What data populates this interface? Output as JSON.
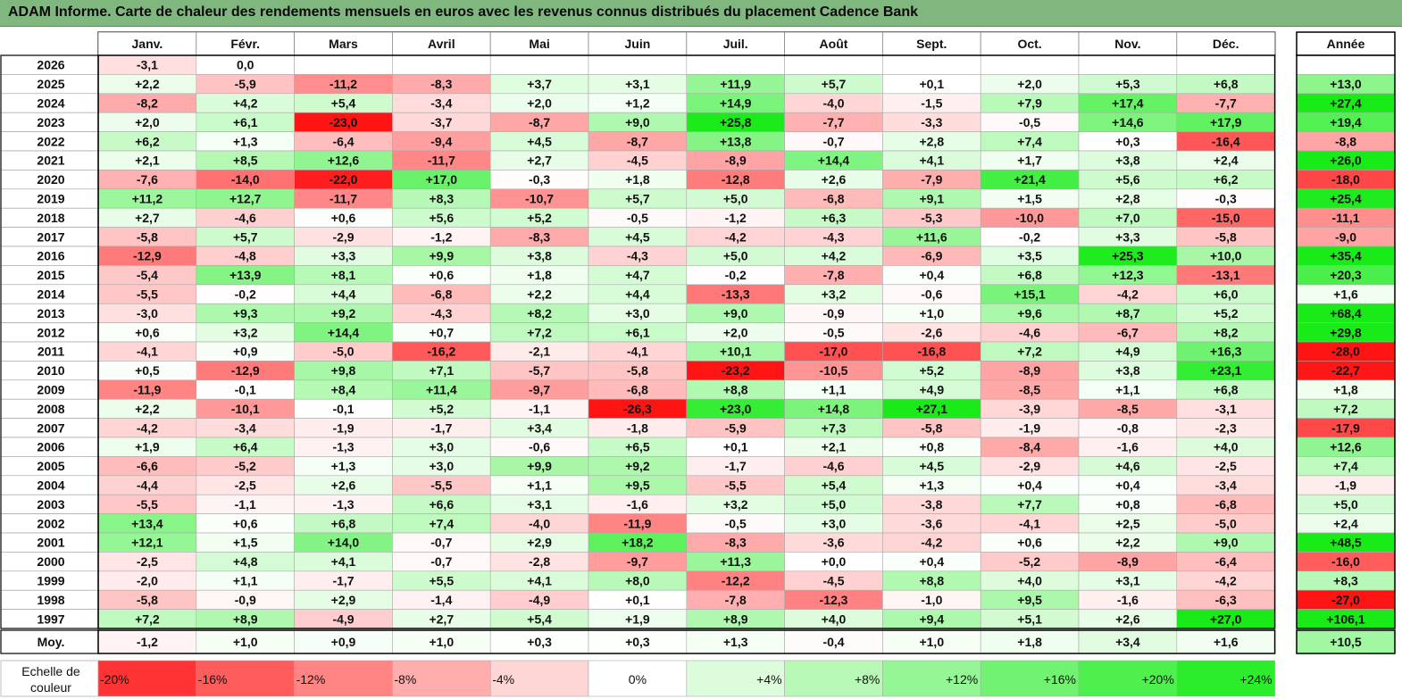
{
  "title": "ADAM Informe. Carte de chaleur des rendements mensuels en euros avec les revenus connus distribués du placement Cadence Bank",
  "chart_data": {
    "type": "heatmap",
    "title": "ADAM Informe. Carte de chaleur des rendements mensuels en euros avec les revenus connus distribués du placement Cadence Bank",
    "months": [
      "Janv.",
      "Févr.",
      "Mars",
      "Avril",
      "Mai",
      "Juin",
      "Juil.",
      "Août",
      "Sept.",
      "Oct.",
      "Nov.",
      "Déc."
    ],
    "year_column_label": "Année",
    "rows": [
      {
        "year": "2026",
        "values": [
          "-3,1",
          "0,0",
          "",
          "",
          "",
          "",
          "",
          "",
          "",
          "",
          "",
          ""
        ],
        "annual": ""
      },
      {
        "year": "2025",
        "values": [
          "+2,2",
          "-5,9",
          "-11,2",
          "-8,3",
          "+3,7",
          "+3,1",
          "+11,9",
          "+5,7",
          "+0,1",
          "+2,0",
          "+5,3",
          "+6,8"
        ],
        "annual": "+13,0"
      },
      {
        "year": "2024",
        "values": [
          "-8,2",
          "+4,2",
          "+5,4",
          "-3,4",
          "+2,0",
          "+1,2",
          "+14,9",
          "-4,0",
          "-1,5",
          "+7,9",
          "+17,4",
          "-7,7"
        ],
        "annual": "+27,4"
      },
      {
        "year": "2023",
        "values": [
          "+2,0",
          "+6,1",
          "-23,0",
          "-3,7",
          "-8,7",
          "+9,0",
          "+25,8",
          "-7,7",
          "-3,3",
          "-0,5",
          "+14,6",
          "+17,9"
        ],
        "annual": "+19,4"
      },
      {
        "year": "2022",
        "values": [
          "+6,2",
          "+1,3",
          "-6,4",
          "-9,4",
          "+4,5",
          "-8,7",
          "+13,8",
          "-0,7",
          "+2,8",
          "+7,4",
          "+0,3",
          "-16,4"
        ],
        "annual": "-8,8"
      },
      {
        "year": "2021",
        "values": [
          "+2,1",
          "+8,5",
          "+12,6",
          "-11,7",
          "+2,7",
          "-4,5",
          "-8,9",
          "+14,4",
          "+4,1",
          "+1,7",
          "+3,8",
          "+2,4"
        ],
        "annual": "+26,0"
      },
      {
        "year": "2020",
        "values": [
          "-7,6",
          "-14,0",
          "-22,0",
          "+17,0",
          "-0,3",
          "+1,8",
          "-12,8",
          "+2,6",
          "-7,9",
          "+21,4",
          "+5,6",
          "+6,2"
        ],
        "annual": "-18,0"
      },
      {
        "year": "2019",
        "values": [
          "+11,2",
          "+12,7",
          "-11,7",
          "+8,3",
          "-10,7",
          "+5,7",
          "+5,0",
          "-6,8",
          "+9,1",
          "+1,5",
          "+2,8",
          "-0,3"
        ],
        "annual": "+25,4"
      },
      {
        "year": "2018",
        "values": [
          "+2,7",
          "-4,6",
          "+0,6",
          "+5,6",
          "+5,2",
          "-0,5",
          "-1,2",
          "+6,3",
          "-5,3",
          "-10,0",
          "+7,0",
          "-15,0"
        ],
        "annual": "-11,1"
      },
      {
        "year": "2017",
        "values": [
          "-5,8",
          "+5,7",
          "-2,9",
          "-1,2",
          "-8,3",
          "+4,5",
          "-4,2",
          "-4,3",
          "+11,6",
          "-0,2",
          "+3,3",
          "-5,8"
        ],
        "annual": "-9,0"
      },
      {
        "year": "2016",
        "values": [
          "-12,9",
          "-4,8",
          "+3,3",
          "+9,9",
          "+3,8",
          "-4,3",
          "+5,0",
          "+4,2",
          "-6,9",
          "+3,5",
          "+25,3",
          "+10,0"
        ],
        "annual": "+35,4"
      },
      {
        "year": "2015",
        "values": [
          "-5,4",
          "+13,9",
          "+8,1",
          "+0,6",
          "+1,8",
          "+4,7",
          "-0,2",
          "-7,8",
          "+0,4",
          "+6,8",
          "+12,3",
          "-13,1"
        ],
        "annual": "+20,3"
      },
      {
        "year": "2014",
        "values": [
          "-5,5",
          "-0,2",
          "+4,4",
          "-6,8",
          "+2,2",
          "+4,4",
          "-13,3",
          "+3,2",
          "-0,6",
          "+15,1",
          "-4,2",
          "+6,0"
        ],
        "annual": "+1,6"
      },
      {
        "year": "2013",
        "values": [
          "-3,0",
          "+9,3",
          "+9,2",
          "-4,3",
          "+8,2",
          "+3,0",
          "+9,0",
          "-0,9",
          "+1,0",
          "+9,6",
          "+8,7",
          "+5,2"
        ],
        "annual": "+68,4"
      },
      {
        "year": "2012",
        "values": [
          "+0,6",
          "+3,2",
          "+14,4",
          "+0,7",
          "+7,2",
          "+6,1",
          "+2,0",
          "-0,5",
          "-2,6",
          "-4,6",
          "-6,7",
          "+8,2"
        ],
        "annual": "+29,8"
      },
      {
        "year": "2011",
        "values": [
          "-4,1",
          "+0,9",
          "-5,0",
          "-16,2",
          "-2,1",
          "-4,1",
          "+10,1",
          "-17,0",
          "-16,8",
          "+7,2",
          "+4,9",
          "+16,3"
        ],
        "annual": "-28,0"
      },
      {
        "year": "2010",
        "values": [
          "+0,5",
          "-12,9",
          "+9,8",
          "+7,1",
          "-5,7",
          "-5,8",
          "-23,2",
          "-10,5",
          "+5,2",
          "-8,9",
          "+3,8",
          "+23,1"
        ],
        "annual": "-22,7"
      },
      {
        "year": "2009",
        "values": [
          "-11,9",
          "-0,1",
          "+8,4",
          "+11,4",
          "-9,7",
          "-6,8",
          "+8,8",
          "+1,1",
          "+4,9",
          "-8,5",
          "+1,1",
          "+6,8"
        ],
        "annual": "+1,8"
      },
      {
        "year": "2008",
        "values": [
          "+2,2",
          "-10,1",
          "-0,1",
          "+5,2",
          "-1,1",
          "-26,3",
          "+23,0",
          "+14,8",
          "+27,1",
          "-3,9",
          "-8,5",
          "-3,1"
        ],
        "annual": "+7,2"
      },
      {
        "year": "2007",
        "values": [
          "-4,2",
          "-3,4",
          "-1,9",
          "-1,7",
          "+3,4",
          "-1,8",
          "-5,9",
          "+7,3",
          "-5,8",
          "-1,9",
          "-0,8",
          "-2,3"
        ],
        "annual": "-17,9"
      },
      {
        "year": "2006",
        "values": [
          "+1,9",
          "+6,4",
          "-1,3",
          "+3,0",
          "-0,6",
          "+6,5",
          "+0,1",
          "+2,1",
          "+0,8",
          "-8,4",
          "-1,6",
          "+4,0"
        ],
        "annual": "+12,6"
      },
      {
        "year": "2005",
        "values": [
          "-6,6",
          "-5,2",
          "+1,3",
          "+3,0",
          "+9,9",
          "+9,2",
          "-1,7",
          "-4,6",
          "+4,5",
          "-2,9",
          "+4,6",
          "-2,5"
        ],
        "annual": "+7,4"
      },
      {
        "year": "2004",
        "values": [
          "-4,4",
          "-2,5",
          "+2,6",
          "-5,5",
          "+1,1",
          "+9,5",
          "-5,5",
          "+5,4",
          "+1,3",
          "+0,4",
          "+0,4",
          "-3,4"
        ],
        "annual": "-1,9"
      },
      {
        "year": "2003",
        "values": [
          "-5,5",
          "-1,1",
          "-1,3",
          "+6,6",
          "+3,1",
          "-1,6",
          "+3,2",
          "+5,0",
          "-3,8",
          "+7,7",
          "+0,8",
          "-6,8"
        ],
        "annual": "+5,0"
      },
      {
        "year": "2002",
        "values": [
          "+13,4",
          "+0,6",
          "+6,8",
          "+7,4",
          "-4,0",
          "-11,9",
          "-0,5",
          "+3,0",
          "-3,6",
          "-4,1",
          "+2,5",
          "-5,0"
        ],
        "annual": "+2,4"
      },
      {
        "year": "2001",
        "values": [
          "+12,1",
          "+1,5",
          "+14,0",
          "-0,7",
          "+2,9",
          "+18,2",
          "-8,3",
          "-3,6",
          "-4,2",
          "+0,6",
          "+2,2",
          "+9,0"
        ],
        "annual": "+48,5"
      },
      {
        "year": "2000",
        "values": [
          "-2,5",
          "+4,8",
          "+4,1",
          "-0,7",
          "-2,8",
          "-9,7",
          "+11,3",
          "+0,0",
          "+0,4",
          "-5,2",
          "-8,9",
          "-6,4"
        ],
        "annual": "-16,0"
      },
      {
        "year": "1999",
        "values": [
          "-2,0",
          "+1,1",
          "-1,7",
          "+5,5",
          "+4,1",
          "+8,0",
          "-12,2",
          "-4,5",
          "+8,8",
          "+4,0",
          "+3,1",
          "-4,2"
        ],
        "annual": "+8,3"
      },
      {
        "year": "1998",
        "values": [
          "-5,8",
          "-0,9",
          "+2,9",
          "-1,4",
          "-4,9",
          "+0,1",
          "-7,8",
          "-12,3",
          "-1,0",
          "+9,5",
          "-1,6",
          "-6,3"
        ],
        "annual": "-27,0"
      },
      {
        "year": "1997",
        "values": [
          "+7,2",
          "+8,9",
          "-4,9",
          "+2,7",
          "+5,4",
          "+1,9",
          "+8,9",
          "+4,0",
          "+9,4",
          "+5,1",
          "+2,6",
          "+27,0"
        ],
        "annual": "+106,1"
      }
    ],
    "average": {
      "label": "Moy.",
      "values": [
        "-1,2",
        "+1,0",
        "+0,9",
        "+1,0",
        "+0,3",
        "+0,3",
        "+1,3",
        "-0,4",
        "+1,0",
        "+1,8",
        "+3,4",
        "+1,6"
      ],
      "annual": "+10,5"
    },
    "legend": {
      "label_line1": "Echelle de",
      "label_line2": "couleur",
      "steps": [
        "-20%",
        "-16%",
        "-12%",
        "-8%",
        "-4%",
        "0%",
        "+4%",
        "+8%",
        "+12%",
        "+16%",
        "+20%",
        "+24%"
      ]
    },
    "colors": {
      "negative": "#ff1a1a",
      "positive": "#22ee22",
      "neutral": "#ffffff",
      "title_bar": "#7fb77f"
    }
  }
}
